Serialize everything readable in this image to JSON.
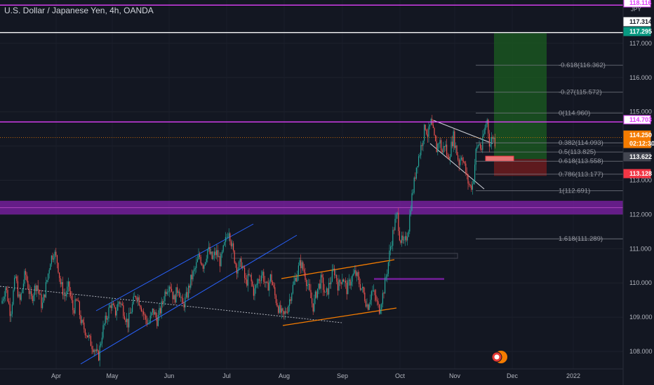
{
  "header": {
    "symbol": "U.S. Dollar / Japanese Yen",
    "interval": "4h",
    "exchange": "OANDA",
    "currency": "JPY"
  },
  "chart_data": {
    "type": "candlestick",
    "y_ticks": [
      "108.000",
      "109.000",
      "110.000",
      "111.000",
      "112.000",
      "113.000",
      "114.000",
      "115.000",
      "116.000",
      "117.000"
    ],
    "x_ticks": [
      "Apr",
      "May",
      "Jun",
      "Jul",
      "Aug",
      "Sep",
      "Oct",
      "Nov",
      "Dec",
      "2022"
    ],
    "price_tags": [
      {
        "value": "118.116",
        "kind": "magenta-line",
        "color": "#e040fb"
      },
      {
        "value": "117.314",
        "kind": "white-box",
        "color": "#ffffff"
      },
      {
        "value": "117.295",
        "kind": "green-target",
        "color": "#089981"
      },
      {
        "value": "114.703",
        "kind": "magenta-line",
        "color": "#e040fb"
      },
      {
        "value": "114.250",
        "kind": "last-price",
        "color": "#f57c00"
      },
      {
        "value": "02:12:30",
        "kind": "countdown",
        "color": "#f57c00"
      },
      {
        "value": "113.622",
        "kind": "entry",
        "color": "#434651"
      },
      {
        "value": "113.128",
        "kind": "stop",
        "color": "#f23645"
      }
    ],
    "fib_levels": [
      {
        "label": "-0.618(116.362)",
        "price": 116.362
      },
      {
        "label": "-0.27(115.572)",
        "price": 115.572
      },
      {
        "label": "0(114.960)",
        "price": 114.96
      },
      {
        "label": "0.382(114.093)",
        "price": 114.093
      },
      {
        "label": "0.5(113.825)",
        "price": 113.825
      },
      {
        "label": "0.618(113.558)",
        "price": 113.558
      },
      {
        "label": "0.786(113.177)",
        "price": 113.177
      },
      {
        "label": "1(112.691)",
        "price": 112.691
      },
      {
        "label": "1.618(111.289)",
        "price": 111.289
      }
    ],
    "horizontal_lines": [
      {
        "price": 118.116,
        "color": "#e040fb"
      },
      {
        "price": 117.314,
        "color": "#ffffff"
      },
      {
        "price": 114.703,
        "color": "#e040fb"
      }
    ],
    "zones": [
      {
        "from": 112.0,
        "to": 112.4,
        "color": "#7b1fa2"
      }
    ],
    "position": {
      "entry": 113.622,
      "target": 117.295,
      "stop": 113.128
    },
    "price_path": [
      [
        2,
        109.4
      ],
      [
        8,
        109.9
      ],
      [
        15,
        109.1
      ],
      [
        22,
        110.2
      ],
      [
        28,
        109.4
      ],
      [
        36,
        110.3
      ],
      [
        44,
        109.5
      ],
      [
        52,
        110.0
      ],
      [
        60,
        109.3
      ],
      [
        68,
        110.2
      ],
      [
        72,
        110.7
      ],
      [
        77,
        110.9
      ],
      [
        82,
        110.6
      ],
      [
        86,
        110.0
      ],
      [
        92,
        109.6
      ],
      [
        98,
        109.9
      ],
      [
        104,
        109.2
      ],
      [
        110,
        109.5
      ],
      [
        116,
        108.8
      ],
      [
        122,
        108.6
      ],
      [
        128,
        108.3
      ],
      [
        134,
        108.1
      ],
      [
        140,
        107.8
      ],
      [
        146,
        108.6
      ],
      [
        152,
        109.0
      ],
      [
        158,
        109.4
      ],
      [
        164,
        109.1
      ],
      [
        170,
        109.5
      ],
      [
        176,
        109.2
      ],
      [
        182,
        108.8
      ],
      [
        188,
        109.3
      ],
      [
        194,
        109.7
      ],
      [
        200,
        109.4
      ],
      [
        206,
        109.0
      ],
      [
        212,
        108.8
      ],
      [
        218,
        109.2
      ],
      [
        224,
        108.9
      ],
      [
        230,
        109.3
      ],
      [
        236,
        109.8
      ],
      [
        242,
        110.0
      ],
      [
        248,
        109.5
      ],
      [
        254,
        109.9
      ],
      [
        260,
        109.3
      ],
      [
        266,
        109.6
      ],
      [
        272,
        110.1
      ],
      [
        278,
        110.4
      ],
      [
        284,
        110.8
      ],
      [
        290,
        110.5
      ],
      [
        296,
        111.0
      ],
      [
        302,
        110.7
      ],
      [
        308,
        110.9
      ],
      [
        314,
        110.6
      ],
      [
        320,
        111.1
      ],
      [
        326,
        111.6
      ],
      [
        332,
        110.9
      ],
      [
        338,
        110.4
      ],
      [
        344,
        110.6
      ],
      [
        350,
        110.0
      ],
      [
        356,
        110.2
      ],
      [
        362,
        109.7
      ],
      [
        368,
        110.1
      ],
      [
        374,
        110.3
      ],
      [
        380,
        109.8
      ],
      [
        386,
        110.2
      ],
      [
        392,
        109.6
      ],
      [
        398,
        109.2
      ],
      [
        404,
        109.0
      ],
      [
        410,
        109.3
      ],
      [
        416,
        109.8
      ],
      [
        422,
        110.2
      ],
      [
        428,
        110.6
      ],
      [
        434,
        110.3
      ],
      [
        440,
        109.8
      ],
      [
        446,
        109.3
      ],
      [
        452,
        109.8
      ],
      [
        458,
        110.1
      ],
      [
        464,
        109.6
      ],
      [
        470,
        110.0
      ],
      [
        476,
        110.4
      ],
      [
        482,
        109.9
      ],
      [
        488,
        110.2
      ],
      [
        494,
        109.8
      ],
      [
        500,
        110.1
      ],
      [
        506,
        110.3
      ],
      [
        512,
        110.0
      ],
      [
        518,
        109.7
      ],
      [
        524,
        109.3
      ],
      [
        530,
        109.8
      ],
      [
        536,
        109.5
      ],
      [
        540,
        109.2
      ],
      [
        546,
        109.7
      ],
      [
        552,
        110.4
      ],
      [
        556,
        111.0
      ],
      [
        562,
        111.7
      ],
      [
        566,
        112.0
      ],
      [
        570,
        111.3
      ],
      [
        576,
        111.1
      ],
      [
        582,
        111.6
      ],
      [
        586,
        112.4
      ],
      [
        590,
        112.9
      ],
      [
        594,
        113.5
      ],
      [
        598,
        113.8
      ],
      [
        602,
        114.2
      ],
      [
        606,
        114.6
      ],
      [
        610,
        114.3
      ],
      [
        614,
        114.7
      ],
      [
        618,
        114.3
      ],
      [
        622,
        113.9
      ],
      [
        626,
        114.2
      ],
      [
        630,
        113.8
      ],
      [
        634,
        114.1
      ],
      [
        638,
        113.6
      ],
      [
        642,
        113.9
      ],
      [
        646,
        114.3
      ],
      [
        650,
        113.9
      ],
      [
        654,
        113.5
      ],
      [
        658,
        113.8
      ],
      [
        662,
        113.4
      ],
      [
        666,
        113.0
      ],
      [
        670,
        112.8
      ],
      [
        674,
        112.9
      ],
      [
        678,
        113.8
      ],
      [
        682,
        114.1
      ],
      [
        686,
        113.9
      ],
      [
        690,
        114.4
      ],
      [
        694,
        114.8
      ],
      [
        698,
        114.0
      ],
      [
        702,
        114.3
      ],
      [
        706,
        114.1
      ]
    ]
  }
}
